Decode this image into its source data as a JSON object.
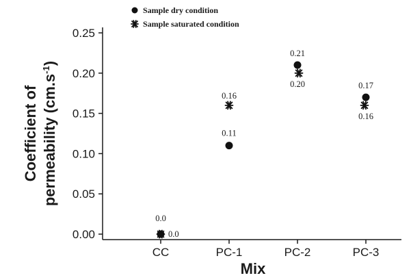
{
  "chart_data": {
    "type": "scatter",
    "categories": [
      "CC",
      "PC-1",
      "PC-2",
      "PC-3"
    ],
    "series": [
      {
        "name": "Sample dry condition",
        "marker": "circle",
        "values": [
          0.0,
          0.11,
          0.21,
          0.17
        ],
        "labels": [
          "0.0",
          "0.11",
          "0.21",
          "0.17"
        ]
      },
      {
        "name": "Sample saturated condition",
        "marker": "asterisk",
        "values": [
          0.0,
          0.16,
          0.2,
          0.16
        ],
        "labels": [
          "0.0",
          "0.16",
          "0.20",
          "0.16"
        ]
      }
    ],
    "xlabel": "Mix",
    "ylabel_line1": "Coefficient of",
    "ylabel_line2": "permeability (cm.s",
    "ylabel_sup": "-1",
    "ylabel_close": ")",
    "ylim": [
      0,
      0.25
    ],
    "yticks": [
      "0.00",
      "0.05",
      "0.10",
      "0.15",
      "0.20",
      "0.25"
    ],
    "grid": false,
    "legend_position": "top-left",
    "colors": {
      "marker": "#111111",
      "axis": "#1a1a1a"
    }
  }
}
